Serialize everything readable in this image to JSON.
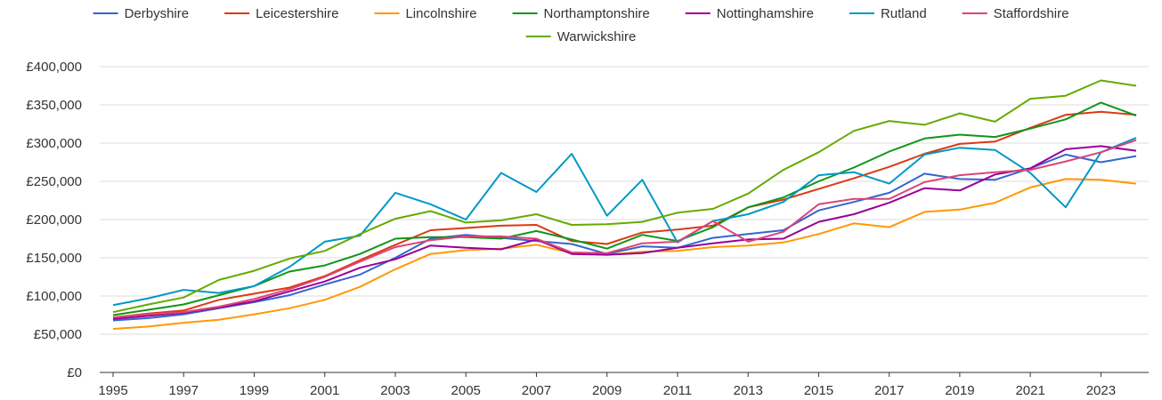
{
  "chart_data": {
    "type": "line",
    "title": "",
    "xlabel": "",
    "ylabel": "",
    "x": [
      1995,
      1996,
      1997,
      1998,
      1999,
      2000,
      2001,
      2002,
      2003,
      2004,
      2005,
      2006,
      2007,
      2008,
      2009,
      2010,
      2011,
      2012,
      2013,
      2014,
      2015,
      2016,
      2017,
      2018,
      2019,
      2020,
      2021,
      2022,
      2023,
      2024
    ],
    "x_tick_labels": [
      "1995",
      "1997",
      "1999",
      "2001",
      "2003",
      "2005",
      "2007",
      "2009",
      "2011",
      "2013",
      "2015",
      "2017",
      "2019",
      "2021",
      "2023"
    ],
    "ylim": [
      0,
      400000
    ],
    "y_ticks": [
      0,
      50000,
      100000,
      150000,
      200000,
      250000,
      300000,
      350000,
      400000
    ],
    "y_tick_labels": [
      "£0",
      "£50,000",
      "£100,000",
      "£150,000",
      "£200,000",
      "£250,000",
      "£300,000",
      "£350,000",
      "£400,000"
    ],
    "grid": "horizontal",
    "legend_position": "top",
    "series": [
      {
        "name": "Derbyshire",
        "color": "#3366cc",
        "values": [
          68000,
          71000,
          76000,
          84000,
          92000,
          101000,
          115000,
          128000,
          150000,
          175000,
          180000,
          176000,
          172000,
          168000,
          155000,
          165000,
          163000,
          176000,
          181000,
          186000,
          212000,
          223000,
          235000,
          260000,
          253000,
          252000,
          267000,
          285000,
          275000,
          283000
        ]
      },
      {
        "name": "Leicestershire",
        "color": "#dc3912",
        "values": [
          72000,
          77000,
          81000,
          95000,
          103000,
          111000,
          126000,
          147000,
          167000,
          186000,
          189000,
          192000,
          193000,
          172000,
          168000,
          183000,
          187000,
          192000,
          216000,
          226000,
          240000,
          254000,
          269000,
          286000,
          299000,
          302000,
          320000,
          337000,
          341000,
          337000
        ]
      },
      {
        "name": "Lincolnshire",
        "color": "#ff9900",
        "values": [
          57000,
          60000,
          65000,
          69000,
          76000,
          84000,
          95000,
          112000,
          135000,
          155000,
          160000,
          162000,
          167000,
          156000,
          154000,
          158000,
          159000,
          164000,
          166000,
          170000,
          181000,
          195000,
          190000,
          210000,
          213000,
          222000,
          242000,
          253000,
          252000,
          247000
        ]
      },
      {
        "name": "Northamptonshire",
        "color": "#109618",
        "values": [
          75000,
          82000,
          89000,
          101000,
          113000,
          132000,
          140000,
          155000,
          175000,
          177000,
          177000,
          175000,
          185000,
          174000,
          162000,
          180000,
          172000,
          190000,
          216000,
          229000,
          250000,
          268000,
          289000,
          306000,
          311000,
          308000,
          319000,
          331000,
          353000,
          336000
        ]
      },
      {
        "name": "Nottinghamshire",
        "color": "#990099",
        "values": [
          70000,
          74000,
          78000,
          85000,
          93000,
          106000,
          119000,
          137000,
          148000,
          166000,
          163000,
          161000,
          174000,
          155000,
          154000,
          156000,
          163000,
          169000,
          174000,
          175000,
          197000,
          207000,
          222000,
          241000,
          238000,
          259000,
          267000,
          292000,
          296000,
          290000
        ]
      },
      {
        "name": "Rutland",
        "color": "#0099c6",
        "values": [
          88000,
          97000,
          108000,
          104000,
          113000,
          138000,
          171000,
          179000,
          235000,
          220000,
          200000,
          261000,
          236000,
          286000,
          205000,
          252000,
          170000,
          198000,
          207000,
          223000,
          258000,
          262000,
          247000,
          285000,
          294000,
          291000,
          261000,
          216000,
          288000,
          307000
        ]
      },
      {
        "name": "Staffordshire",
        "color": "#dd4477",
        "values": [
          72000,
          76000,
          79000,
          86000,
          96000,
          109000,
          125000,
          145000,
          164000,
          173000,
          178000,
          178000,
          175000,
          157000,
          156000,
          169000,
          171000,
          198000,
          171000,
          184000,
          220000,
          227000,
          227000,
          249000,
          258000,
          262000,
          265000,
          276000,
          288000,
          304000
        ]
      },
      {
        "name": "Warwickshire",
        "color": "#66aa00",
        "values": [
          79000,
          89000,
          98000,
          121000,
          133000,
          149000,
          159000,
          181000,
          201000,
          211000,
          196000,
          199000,
          207000,
          193000,
          194000,
          197000,
          209000,
          214000,
          234000,
          265000,
          288000,
          316000,
          329000,
          324000,
          339000,
          328000,
          358000,
          362000,
          382000,
          375000
        ]
      }
    ]
  }
}
